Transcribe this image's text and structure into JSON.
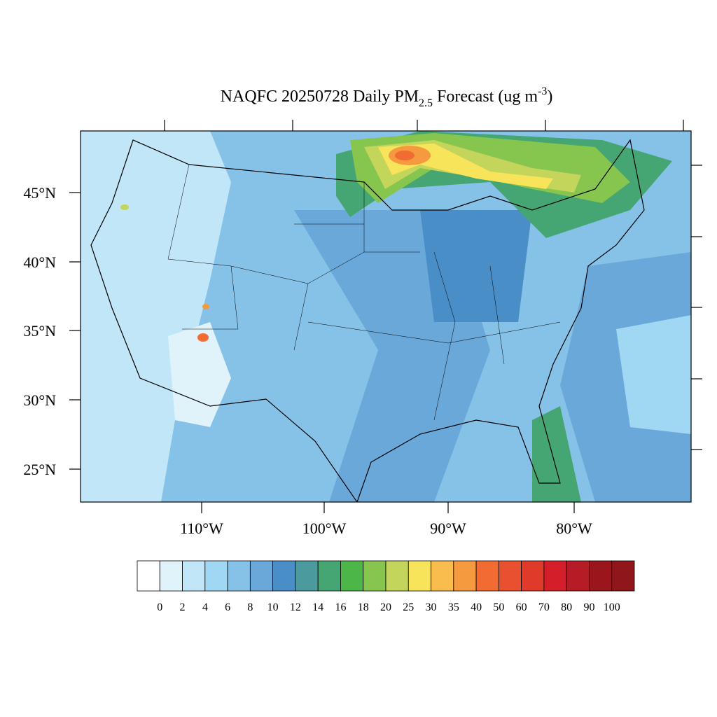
{
  "title": {
    "main": "NAQFC 20250728 Daily PM",
    "sub": "2.5",
    "mid": " Forecast (ug m",
    "sup": "-3",
    "end": ")"
  },
  "lat_labels": [
    "45°N",
    "40°N",
    "35°N",
    "30°N",
    "25°N"
  ],
  "lon_labels": [
    "110°W",
    "100°W",
    "90°W",
    "80°W"
  ],
  "colorbar": {
    "labels": [
      0,
      2,
      4,
      6,
      8,
      10,
      12,
      14,
      16,
      18,
      20,
      25,
      30,
      35,
      40,
      50,
      60,
      70,
      80,
      90,
      100
    ],
    "colors": [
      "#ffffff",
      "#e0f3fb",
      "#c0e6f7",
      "#a0d8f4",
      "#86c2e8",
      "#6aa8da",
      "#4a8ec8",
      "#4a9a9e",
      "#46a673",
      "#4cb748",
      "#86c64f",
      "#c3d55a",
      "#f8e45b",
      "#f8bd4c",
      "#f59a3f",
      "#f26b32",
      "#e85030",
      "#df3a2a",
      "#d41f2b",
      "#b51c25",
      "#9a161c",
      "#8f161b"
    ]
  }
}
